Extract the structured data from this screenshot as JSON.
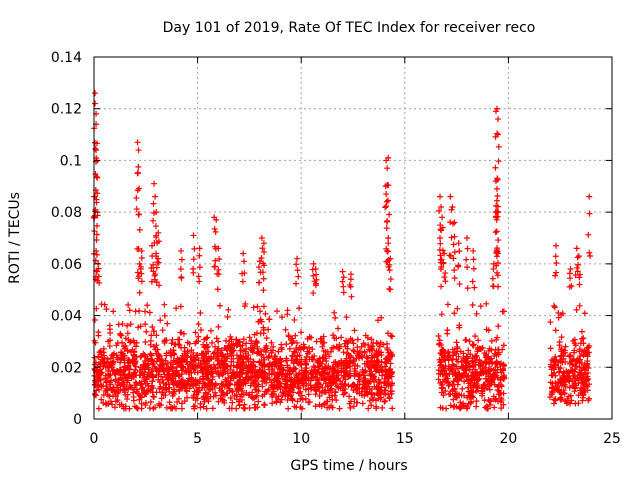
{
  "chart_data": {
    "type": "scatter",
    "title": "Day 101 of 2019, Rate Of TEC Index for receiver reco",
    "xlabel": "GPS time / hours",
    "ylabel": "ROTI / TECUs",
    "xlim": [
      0,
      25
    ],
    "ylim": [
      0,
      0.14
    ],
    "xticks": [
      0,
      5,
      10,
      15,
      20,
      25
    ],
    "yticks": [
      0,
      0.02,
      0.04,
      0.06,
      0.08,
      0.1,
      0.12,
      0.14
    ],
    "xtick_labels": [
      "0",
      "5",
      "10",
      "15",
      "20",
      "25"
    ],
    "ytick_labels": [
      "0",
      "0.02",
      "0.04",
      "0.06",
      "0.08",
      "0.1",
      "0.12",
      "0.14"
    ],
    "grid": true,
    "marker": "+",
    "color": "#ff0000",
    "segments": [
      {
        "x_start": 0.0,
        "x_end": 14.4,
        "y_min": 0.004,
        "y_max": 0.045,
        "typical": 0.018
      },
      {
        "x_start": 16.6,
        "x_end": 19.8,
        "y_min": 0.004,
        "y_max": 0.045,
        "typical": 0.018
      },
      {
        "x_start": 22.0,
        "x_end": 23.9,
        "y_min": 0.006,
        "y_max": 0.045,
        "typical": 0.018
      }
    ],
    "spikes": [
      {
        "x": 0.05,
        "y": 0.126
      },
      {
        "x": 0.05,
        "y": 0.122
      },
      {
        "x": 0.1,
        "y": 0.118
      },
      {
        "x": 0.1,
        "y": 0.114
      },
      {
        "x": 0.1,
        "y": 0.104
      },
      {
        "x": 0.15,
        "y": 0.1
      },
      {
        "x": 0.05,
        "y": 0.086
      },
      {
        "x": 0.1,
        "y": 0.065
      },
      {
        "x": 0.2,
        "y": 0.06
      },
      {
        "x": 2.1,
        "y": 0.107
      },
      {
        "x": 2.15,
        "y": 0.104
      },
      {
        "x": 2.1,
        "y": 0.095
      },
      {
        "x": 2.2,
        "y": 0.06
      },
      {
        "x": 2.3,
        "y": 0.065
      },
      {
        "x": 2.9,
        "y": 0.091
      },
      {
        "x": 2.95,
        "y": 0.086
      },
      {
        "x": 3.0,
        "y": 0.08
      },
      {
        "x": 3.1,
        "y": 0.072
      },
      {
        "x": 2.8,
        "y": 0.067
      },
      {
        "x": 3.0,
        "y": 0.063
      },
      {
        "x": 4.2,
        "y": 0.065
      },
      {
        "x": 4.8,
        "y": 0.071
      },
      {
        "x": 5.1,
        "y": 0.066
      },
      {
        "x": 5.8,
        "y": 0.078
      },
      {
        "x": 5.9,
        "y": 0.077
      },
      {
        "x": 6.0,
        "y": 0.066
      },
      {
        "x": 7.2,
        "y": 0.064
      },
      {
        "x": 8.1,
        "y": 0.07
      },
      {
        "x": 8.2,
        "y": 0.068
      },
      {
        "x": 8.0,
        "y": 0.061
      },
      {
        "x": 9.8,
        "y": 0.062
      },
      {
        "x": 10.6,
        "y": 0.06
      },
      {
        "x": 10.7,
        "y": 0.058
      },
      {
        "x": 12.0,
        "y": 0.057
      },
      {
        "x": 12.4,
        "y": 0.056
      },
      {
        "x": 14.1,
        "y": 0.1
      },
      {
        "x": 14.2,
        "y": 0.101
      },
      {
        "x": 14.15,
        "y": 0.097
      },
      {
        "x": 14.1,
        "y": 0.087
      },
      {
        "x": 14.2,
        "y": 0.068
      },
      {
        "x": 14.3,
        "y": 0.062
      },
      {
        "x": 16.7,
        "y": 0.086
      },
      {
        "x": 16.75,
        "y": 0.082
      },
      {
        "x": 16.8,
        "y": 0.078
      },
      {
        "x": 16.7,
        "y": 0.07
      },
      {
        "x": 16.9,
        "y": 0.064
      },
      {
        "x": 17.2,
        "y": 0.086
      },
      {
        "x": 17.3,
        "y": 0.082
      },
      {
        "x": 17.4,
        "y": 0.076
      },
      {
        "x": 17.6,
        "y": 0.068
      },
      {
        "x": 18.0,
        "y": 0.07
      },
      {
        "x": 18.3,
        "y": 0.065
      },
      {
        "x": 19.4,
        "y": 0.119
      },
      {
        "x": 19.45,
        "y": 0.12
      },
      {
        "x": 19.5,
        "y": 0.116
      },
      {
        "x": 19.5,
        "y": 0.11
      },
      {
        "x": 19.4,
        "y": 0.092
      },
      {
        "x": 19.45,
        "y": 0.089
      },
      {
        "x": 19.4,
        "y": 0.078
      },
      {
        "x": 19.5,
        "y": 0.064
      },
      {
        "x": 19.3,
        "y": 0.06
      },
      {
        "x": 22.3,
        "y": 0.067
      },
      {
        "x": 23.3,
        "y": 0.066
      },
      {
        "x": 23.4,
        "y": 0.063
      },
      {
        "x": 23.9,
        "y": 0.086
      },
      {
        "x": 23.0,
        "y": 0.058
      }
    ]
  }
}
